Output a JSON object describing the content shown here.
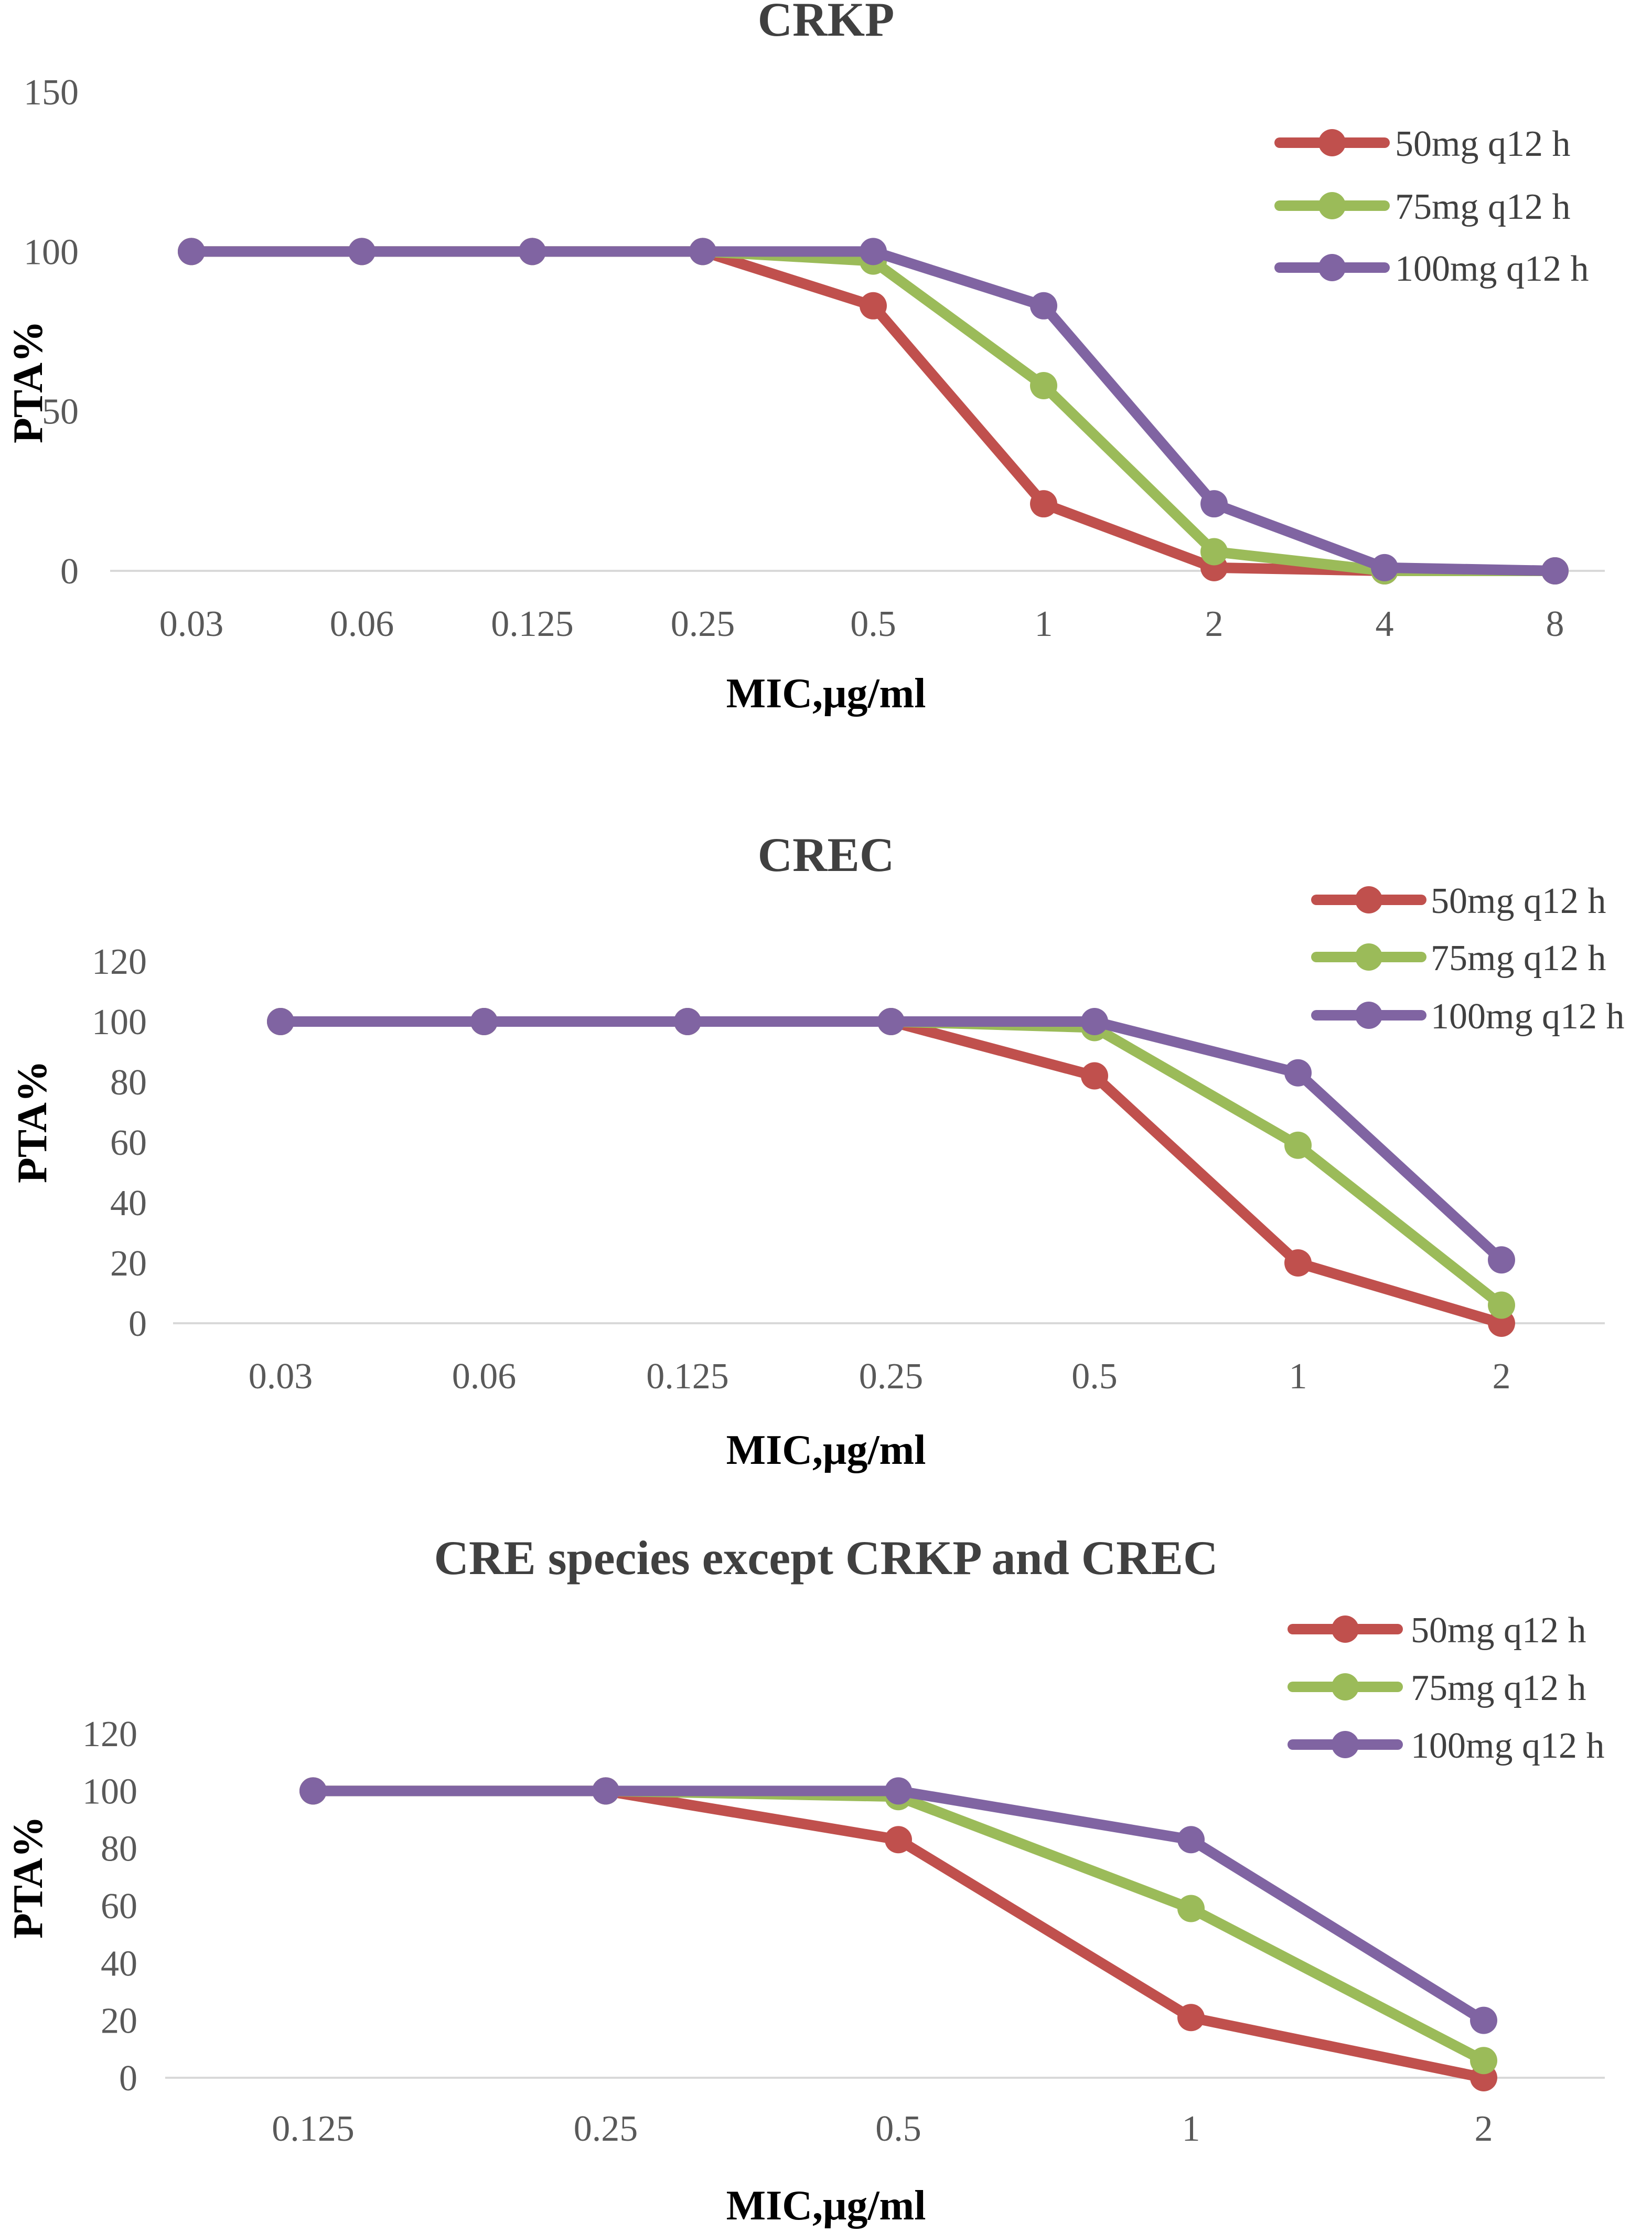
{
  "chart_data": [
    {
      "type": "line",
      "title": "CRKP",
      "xlabel": "MIC,μg/ml",
      "ylabel": "PTA%",
      "categories": [
        "0.03",
        "0.06",
        "0.125",
        "0.25",
        "0.5",
        "1",
        "2",
        "4",
        "8"
      ],
      "yticks": [
        "0",
        "50",
        "100",
        "150"
      ],
      "ylim": [
        0,
        150
      ],
      "grid": false,
      "legend_position": "top-right",
      "series": [
        {
          "name": "50mg q12 h",
          "color": "#c0504d",
          "values": [
            100,
            100,
            100,
            100,
            83,
            21,
            1,
            0,
            0
          ]
        },
        {
          "name": "75mg q12 h",
          "color": "#9bbb59",
          "values": [
            100,
            100,
            100,
            100,
            97,
            58,
            6,
            0,
            0
          ]
        },
        {
          "name": "100mg q12 h",
          "color": "#8064a2",
          "values": [
            100,
            100,
            100,
            100,
            100,
            83,
            21,
            1,
            0
          ]
        }
      ]
    },
    {
      "type": "line",
      "title": "CREC",
      "xlabel": "MIC,μg/ml",
      "ylabel": "PTA%",
      "categories": [
        "0.03",
        "0.06",
        "0.125",
        "0.25",
        "0.5",
        "1",
        "2"
      ],
      "yticks": [
        "0",
        "20",
        "40",
        "60",
        "80",
        "100",
        "120"
      ],
      "ylim": [
        0,
        120
      ],
      "grid": false,
      "legend_position": "top-right",
      "series": [
        {
          "name": "50mg q12 h",
          "color": "#c0504d",
          "values": [
            100,
            100,
            100,
            100,
            82,
            20,
            0
          ]
        },
        {
          "name": "75mg q12 h",
          "color": "#9bbb59",
          "values": [
            100,
            100,
            100,
            100,
            98,
            59,
            6
          ]
        },
        {
          "name": "100mg q12 h",
          "color": "#8064a2",
          "values": [
            100,
            100,
            100,
            100,
            100,
            83,
            21
          ]
        }
      ]
    },
    {
      "type": "line",
      "title": "CRE species except CRKP and CREC",
      "xlabel": "MIC,μg/ml",
      "ylabel": "PTA%",
      "categories": [
        "0.125",
        "0.25",
        "0.5",
        "1",
        "2"
      ],
      "yticks": [
        "0",
        "20",
        "40",
        "60",
        "80",
        "100",
        "120"
      ],
      "ylim": [
        0,
        120
      ],
      "grid": false,
      "legend_position": "top-right",
      "series": [
        {
          "name": "50mg q12 h",
          "color": "#c0504d",
          "values": [
            100,
            100,
            83,
            21,
            0
          ]
        },
        {
          "name": "75mg q12 h",
          "color": "#9bbb59",
          "values": [
            100,
            100,
            98,
            59,
            6
          ]
        },
        {
          "name": "100mg q12 h",
          "color": "#8064a2",
          "values": [
            100,
            100,
            100,
            83,
            20
          ]
        }
      ]
    }
  ]
}
